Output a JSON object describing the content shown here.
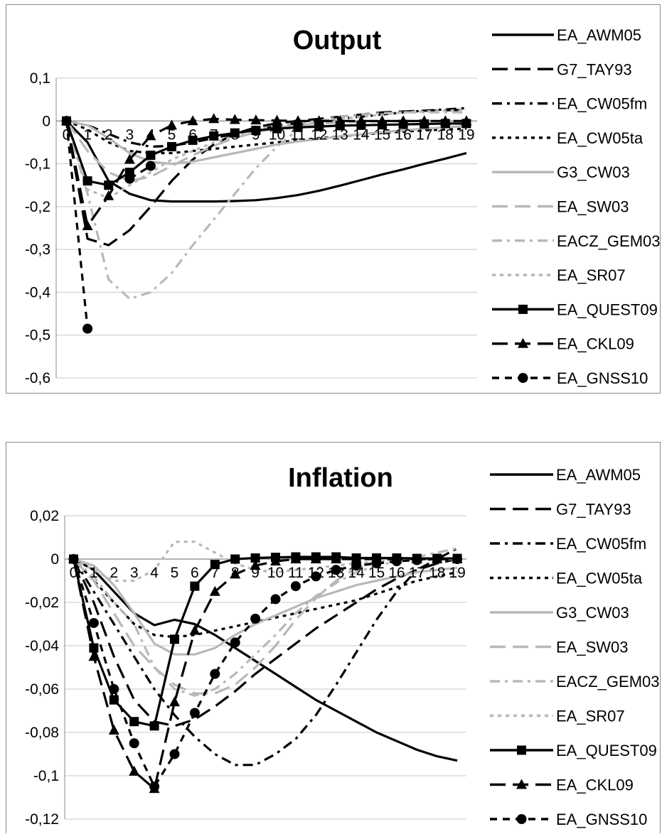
{
  "chart_data": [
    {
      "type": "line",
      "title": "Output",
      "ylim": [
        -0.6,
        0.1
      ],
      "yticks": [
        "0,1",
        "0",
        "-0,1",
        "-0,2",
        "-0,3",
        "-0,4",
        "-0,5",
        "-0,6"
      ],
      "x": [
        0,
        1,
        2,
        3,
        4,
        5,
        6,
        7,
        8,
        9,
        10,
        11,
        12,
        13,
        14,
        15,
        16,
        17,
        18,
        19
      ],
      "xtick_labels": [
        "0",
        "1",
        "2",
        "3",
        "4",
        "5",
        "6",
        "7",
        "8",
        "9",
        "10",
        "11",
        "12",
        "13",
        "14",
        "15",
        "16",
        "17",
        "18",
        "19"
      ],
      "legend_position": "right",
      "grid": true,
      "series": [
        {
          "name": "EA_AWM05",
          "color": "#000000",
          "style": "solid",
          "marker": "none",
          "values": [
            0,
            -0.05,
            -0.14,
            -0.17,
            -0.185,
            -0.188,
            -0.188,
            -0.188,
            -0.187,
            -0.185,
            -0.18,
            -0.173,
            -0.163,
            -0.151,
            -0.138,
            -0.125,
            -0.113,
            -0.1,
            -0.088,
            -0.075
          ]
        },
        {
          "name": "G7_TAY93",
          "color": "#000000",
          "style": "longdash",
          "marker": "none",
          "values": [
            0,
            -0.275,
            -0.29,
            -0.255,
            -0.2,
            -0.14,
            -0.09,
            -0.055,
            -0.03,
            -0.015,
            -0.005,
            0.0,
            0.005,
            0.01,
            0.015,
            0.02,
            0.022,
            0.024,
            0.025,
            0.026
          ]
        },
        {
          "name": "EA_CW05fm",
          "color": "#000000",
          "style": "dashdot",
          "marker": "none",
          "values": [
            0,
            -0.01,
            -0.03,
            -0.05,
            -0.06,
            -0.058,
            -0.05,
            -0.04,
            -0.03,
            -0.02,
            -0.012,
            -0.005,
            0.0,
            0.005,
            0.01,
            0.015,
            0.02,
            0.024,
            0.027,
            0.03
          ]
        },
        {
          "name": "EA_CW05ta",
          "color": "#000000",
          "style": "dot",
          "marker": "none",
          "values": [
            0,
            -0.02,
            -0.05,
            -0.07,
            -0.075,
            -0.075,
            -0.07,
            -0.065,
            -0.06,
            -0.055,
            -0.05,
            -0.045,
            -0.04,
            -0.036,
            -0.032,
            -0.028,
            -0.025,
            -0.022,
            -0.02,
            -0.018
          ]
        },
        {
          "name": "G3_CW03",
          "color": "#b8b8b8",
          "style": "solid",
          "marker": "none",
          "values": [
            0,
            -0.01,
            -0.04,
            -0.075,
            -0.095,
            -0.1,
            -0.095,
            -0.085,
            -0.075,
            -0.065,
            -0.055,
            -0.048,
            -0.042,
            -0.036,
            -0.031,
            -0.026,
            -0.022,
            -0.018,
            -0.015,
            -0.012
          ]
        },
        {
          "name": "EA_SW03",
          "color": "#b8b8b8",
          "style": "longdash",
          "marker": "none",
          "values": [
            0,
            -0.07,
            -0.12,
            -0.14,
            -0.13,
            -0.105,
            -0.08,
            -0.058,
            -0.04,
            -0.026,
            -0.016,
            -0.01,
            -0.006,
            -0.004,
            -0.002,
            -0.001,
            0.0,
            0.0,
            0.0,
            0.0
          ]
        },
        {
          "name": "EACZ_GEM03",
          "color": "#b8b8b8",
          "style": "dashdot",
          "marker": "none",
          "values": [
            0,
            -0.17,
            -0.37,
            -0.415,
            -0.4,
            -0.355,
            -0.29,
            -0.23,
            -0.17,
            -0.11,
            -0.06,
            -0.02,
            0.0,
            0.01,
            0.015,
            0.018,
            0.02,
            0.02,
            0.02,
            0.02
          ]
        },
        {
          "name": "EA_SR07",
          "color": "#b8b8b8",
          "style": "dot",
          "marker": "none",
          "values": [
            0,
            -0.16,
            -0.18,
            -0.15,
            -0.12,
            -0.09,
            -0.07,
            -0.05,
            -0.035,
            -0.02,
            -0.01,
            -0.005,
            0.0,
            0.005,
            0.01,
            0.015,
            0.02,
            0.022,
            0.024,
            0.025
          ]
        },
        {
          "name": "EA_QUEST09",
          "color": "#000000",
          "style": "solid",
          "marker": "square",
          "values": [
            0,
            -0.14,
            -0.15,
            -0.12,
            -0.08,
            -0.06,
            -0.045,
            -0.035,
            -0.028,
            -0.022,
            -0.018,
            -0.015,
            -0.013,
            -0.011,
            -0.01,
            -0.009,
            -0.008,
            -0.007,
            -0.006,
            -0.006
          ]
        },
        {
          "name": "EA_CKL09",
          "color": "#000000",
          "style": "longdash",
          "marker": "triangle",
          "values": [
            0,
            -0.245,
            -0.175,
            -0.09,
            -0.035,
            -0.01,
            0.0,
            0.005,
            0.003,
            0.002,
            0.001,
            0.0,
            0.0,
            0.0,
            0.0,
            0.0,
            0.0,
            0.0,
            0.0,
            0.0
          ]
        },
        {
          "name": "EA_GNSS10",
          "color": "#000000",
          "style": "shortdash",
          "marker": "circle",
          "values": [
            0,
            -0.485,
            null,
            -0.135,
            -0.105,
            null,
            null,
            null,
            null,
            null,
            null,
            null,
            null,
            null,
            null,
            null,
            null,
            null,
            null,
            null
          ]
        }
      ]
    },
    {
      "type": "line",
      "title": "Inflation",
      "ylim": [
        -0.12,
        0.02
      ],
      "yticks": [
        "0,02",
        "0",
        "-0,02",
        "-0,04",
        "-0,06",
        "-0,08",
        "-0,1",
        "-0,12"
      ],
      "x": [
        0,
        1,
        2,
        3,
        4,
        5,
        6,
        7,
        8,
        9,
        10,
        11,
        12,
        13,
        14,
        15,
        16,
        17,
        18,
        19
      ],
      "xtick_labels": [
        "0",
        "1",
        "2",
        "3",
        "4",
        "5",
        "6",
        "7",
        "8",
        "9",
        "10",
        "11",
        "12",
        "13",
        "14",
        "15",
        "16",
        "17",
        "18",
        "19"
      ],
      "legend_position": "right",
      "grid": true,
      "series": [
        {
          "name": "EA_AWM05",
          "color": "#000000",
          "style": "solid",
          "marker": "none",
          "values": [
            0,
            -0.005,
            -0.015,
            -0.025,
            -0.0305,
            -0.028,
            -0.03,
            -0.035,
            -0.041,
            -0.047,
            -0.053,
            -0.059,
            -0.065,
            -0.07,
            -0.075,
            -0.08,
            -0.084,
            -0.088,
            -0.091,
            -0.093
          ]
        },
        {
          "name": "G7_TAY93",
          "color": "#000000",
          "style": "longdash",
          "marker": "none",
          "values": [
            0,
            -0.02,
            -0.045,
            -0.065,
            -0.075,
            -0.077,
            -0.074,
            -0.068,
            -0.061,
            -0.053,
            -0.046,
            -0.039,
            -0.032,
            -0.026,
            -0.02,
            -0.014,
            -0.009,
            -0.005,
            -0.002,
            0.0
          ]
        },
        {
          "name": "EA_CW05fm",
          "color": "#000000",
          "style": "dashdot",
          "marker": "none",
          "values": [
            0,
            -0.015,
            -0.03,
            -0.045,
            -0.06,
            -0.072,
            -0.082,
            -0.09,
            -0.095,
            -0.095,
            -0.09,
            -0.083,
            -0.072,
            -0.058,
            -0.043,
            -0.028,
            -0.015,
            -0.005,
            0.0,
            0.005
          ]
        },
        {
          "name": "EA_CW05ta",
          "color": "#000000",
          "style": "dot",
          "marker": "none",
          "values": [
            0,
            -0.01,
            -0.02,
            -0.03,
            -0.035,
            -0.036,
            -0.035,
            -0.033,
            -0.031,
            -0.029,
            -0.027,
            -0.025,
            -0.023,
            -0.021,
            -0.019,
            -0.016,
            -0.013,
            -0.01,
            -0.008,
            -0.006
          ]
        },
        {
          "name": "G3_CW03",
          "color": "#b8b8b8",
          "style": "solid",
          "marker": "none",
          "values": [
            0,
            -0.003,
            -0.012,
            -0.025,
            -0.039,
            -0.044,
            -0.044,
            -0.041,
            -0.035,
            -0.03,
            -0.026,
            -0.022,
            -0.018,
            -0.015,
            -0.012,
            -0.01,
            -0.008,
            -0.006,
            -0.005,
            -0.004
          ]
        },
        {
          "name": "EA_SW03",
          "color": "#b8b8b8",
          "style": "longdash",
          "marker": "none",
          "values": [
            0,
            -0.01,
            -0.025,
            -0.04,
            -0.05,
            -0.058,
            -0.062,
            -0.062,
            -0.058,
            -0.05,
            -0.04,
            -0.028,
            -0.018,
            -0.01,
            -0.004,
            -0.001,
            0.0,
            0.0,
            0.0,
            0.0
          ]
        },
        {
          "name": "EACZ_GEM03",
          "color": "#b8b8b8",
          "style": "dashdot",
          "marker": "none",
          "values": [
            0,
            -0.008,
            -0.02,
            -0.03,
            -0.05,
            -0.06,
            -0.063,
            -0.06,
            -0.053,
            -0.044,
            -0.035,
            -0.025,
            -0.017,
            -0.011,
            -0.006,
            -0.003,
            -0.001,
            0.001,
            0.003,
            0.005
          ]
        },
        {
          "name": "EA_SR07",
          "color": "#b8b8b8",
          "style": "dot",
          "marker": "none",
          "values": [
            0,
            -0.005,
            -0.01,
            -0.01,
            -0.005,
            0.008,
            0.008,
            0.003,
            -0.002,
            -0.005,
            -0.006,
            -0.005,
            -0.004,
            -0.003,
            -0.002,
            -0.001,
            0.0,
            0.0,
            0.0,
            0.0
          ]
        },
        {
          "name": "EA_QUEST09",
          "color": "#000000",
          "style": "solid",
          "marker": "square",
          "values": [
            0,
            -0.041,
            -0.065,
            -0.075,
            -0.077,
            -0.037,
            -0.0125,
            -0.0025,
            0.0,
            0.0005,
            0.0008,
            0.001,
            0.001,
            0.001,
            0.0005,
            0.0005,
            0.0005,
            0.0003,
            0.0003,
            0.0003
          ]
        },
        {
          "name": "EA_CKL09",
          "color": "#000000",
          "style": "longdash",
          "marker": "triangle",
          "values": [
            0,
            -0.045,
            -0.079,
            -0.098,
            -0.106,
            -0.066,
            -0.033,
            -0.015,
            -0.007,
            -0.003,
            -0.001,
            0.0,
            0.0,
            0.0,
            0.0,
            0.0,
            0.0,
            0.0,
            0.0,
            0.0
          ]
        },
        {
          "name": "EA_GNSS10",
          "color": "#000000",
          "style": "shortdash",
          "marker": "circle",
          "values": [
            0,
            -0.0295,
            -0.06,
            -0.085,
            -0.105,
            -0.09,
            -0.071,
            -0.053,
            -0.0385,
            -0.0275,
            -0.0185,
            -0.0125,
            -0.008,
            -0.005,
            -0.003,
            -0.002,
            -0.001,
            -0.0005,
            0.0,
            0.0
          ]
        }
      ]
    }
  ]
}
